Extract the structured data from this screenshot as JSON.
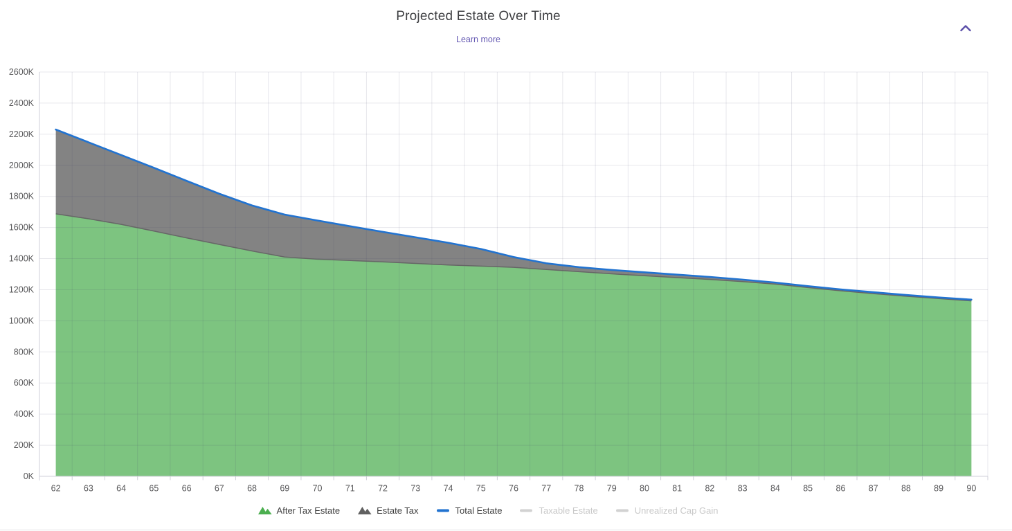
{
  "header": {
    "learn_more": "Learn more",
    "collapse_icon": "chevron-up-icon"
  },
  "chart_data": {
    "type": "area",
    "stacked": true,
    "title": "Projected Estate Over Time",
    "xlabel": "",
    "ylabel": "",
    "x": [
      62,
      63,
      64,
      65,
      66,
      67,
      68,
      69,
      70,
      71,
      72,
      73,
      74,
      75,
      76,
      77,
      78,
      79,
      80,
      81,
      82,
      83,
      84,
      85,
      86,
      87,
      88,
      89,
      90
    ],
    "ylim": [
      0,
      2600
    ],
    "ytick_step": 200,
    "ytick_labels": [
      "0K",
      "200K",
      "400K",
      "600K",
      "800K",
      "1000K",
      "1200K",
      "1400K",
      "1600K",
      "1800K",
      "2000K",
      "2200K",
      "2400K",
      "2600K"
    ],
    "grid": true,
    "legend_position": "bottom",
    "series": [
      {
        "name": "After Tax Estate",
        "type": "area",
        "color": "#4caf50",
        "fill": "#7dc480",
        "edge": "#666666",
        "values": [
          1688,
          1656,
          1620,
          1577,
          1533,
          1491,
          1449,
          1410,
          1396,
          1388,
          1379,
          1369,
          1359,
          1352,
          1344,
          1330,
          1316,
          1302,
          1290,
          1278,
          1266,
          1252,
          1236,
          1214,
          1193,
          1175,
          1158,
          1143,
          1128
        ]
      },
      {
        "name": "Estate Tax",
        "type": "area",
        "color": "#616161",
        "fill": "#838383",
        "values": [
          542,
          492,
          446,
          407,
          367,
          326,
          293,
          273,
          249,
          220,
          193,
          168,
          143,
          110,
          66,
          40,
          29,
          25,
          22,
          19,
          16,
          13,
          10,
          9,
          9,
          9,
          8,
          7,
          8
        ]
      },
      {
        "name": "Total Estate",
        "type": "line",
        "color": "#2273d0",
        "values": [
          2230,
          2148,
          2066,
          1984,
          1900,
          1817,
          1742,
          1683,
          1645,
          1608,
          1572,
          1537,
          1502,
          1462,
          1410,
          1370,
          1345,
          1327,
          1312,
          1297,
          1282,
          1265,
          1246,
          1223,
          1202,
          1184,
          1166,
          1150,
          1136
        ]
      },
      {
        "name": "Taxable Estate",
        "type": "line",
        "color": "#d2d2d2",
        "disabled": true,
        "values": []
      },
      {
        "name": "Unrealized Cap Gain",
        "type": "line",
        "color": "#d2d2d2",
        "disabled": true,
        "values": []
      }
    ]
  }
}
